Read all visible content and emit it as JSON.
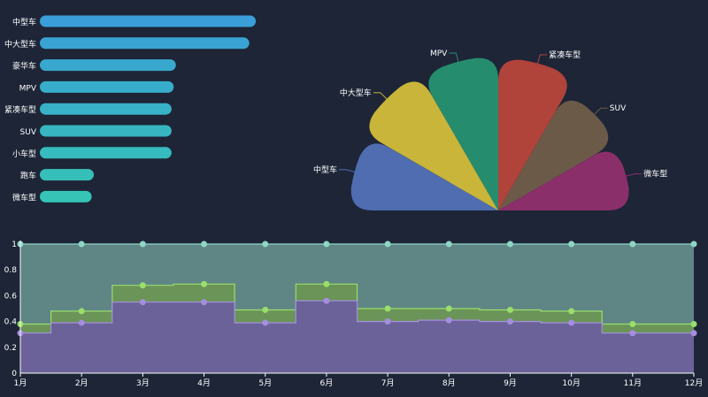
{
  "colors": {
    "background": "#1d2537",
    "bar_gradient_start": "#3a9fd8",
    "bar_gradient_end": "#35c4b5",
    "pie": [
      "#4f6db0",
      "#c8b53a",
      "#268c6e",
      "#b0433a",
      "#6b5a48",
      "#8b2f6a"
    ],
    "area_top_fill": "#5f8585",
    "area_top_line": "#8fd5c5",
    "area_mid_fill": "#6a9458",
    "area_mid_line": "#9ade6b",
    "area_bottom_fill": "#6a6298",
    "area_bottom_line": "#a58ee0",
    "axis": "#ffffff"
  },
  "chart_data": [
    {
      "type": "bar",
      "orientation": "horizontal",
      "categories": [
        "中型车",
        "中大型车",
        "豪华车",
        "MPV",
        "紧凑车型",
        "SUV",
        "小车型",
        "跑车",
        "微车型"
      ],
      "values": [
        100,
        97,
        63,
        62,
        61,
        61,
        61,
        25,
        24
      ],
      "xlim": [
        0,
        100
      ]
    },
    {
      "type": "pie",
      "style": "rose",
      "labels": [
        "中型车",
        "中大型车",
        "MPV",
        "紧凑车型",
        "SUV",
        "微车型"
      ],
      "values": [
        0.82,
        0.87,
        0.85,
        0.84,
        0.75,
        0.73
      ]
    },
    {
      "type": "area",
      "step": true,
      "stacked": false,
      "categories": [
        "1月",
        "2月",
        "3月",
        "4月",
        "5月",
        "6月",
        "7月",
        "8月",
        "9月",
        "10月",
        "11月",
        "12月"
      ],
      "ylim": [
        0,
        1
      ],
      "yticks": [
        0,
        0.2,
        0.4,
        0.6,
        0.8,
        1
      ],
      "series": [
        {
          "values": [
            1,
            1,
            1,
            1,
            1,
            1,
            1,
            1,
            1,
            1,
            1,
            1
          ]
        },
        {
          "values": [
            0.38,
            0.48,
            0.68,
            0.69,
            0.49,
            0.69,
            0.5,
            0.5,
            0.49,
            0.48,
            0.38,
            0.38
          ]
        },
        {
          "values": [
            0.31,
            0.39,
            0.55,
            0.55,
            0.39,
            0.56,
            0.4,
            0.41,
            0.4,
            0.39,
            0.31,
            0.31
          ]
        }
      ]
    }
  ]
}
